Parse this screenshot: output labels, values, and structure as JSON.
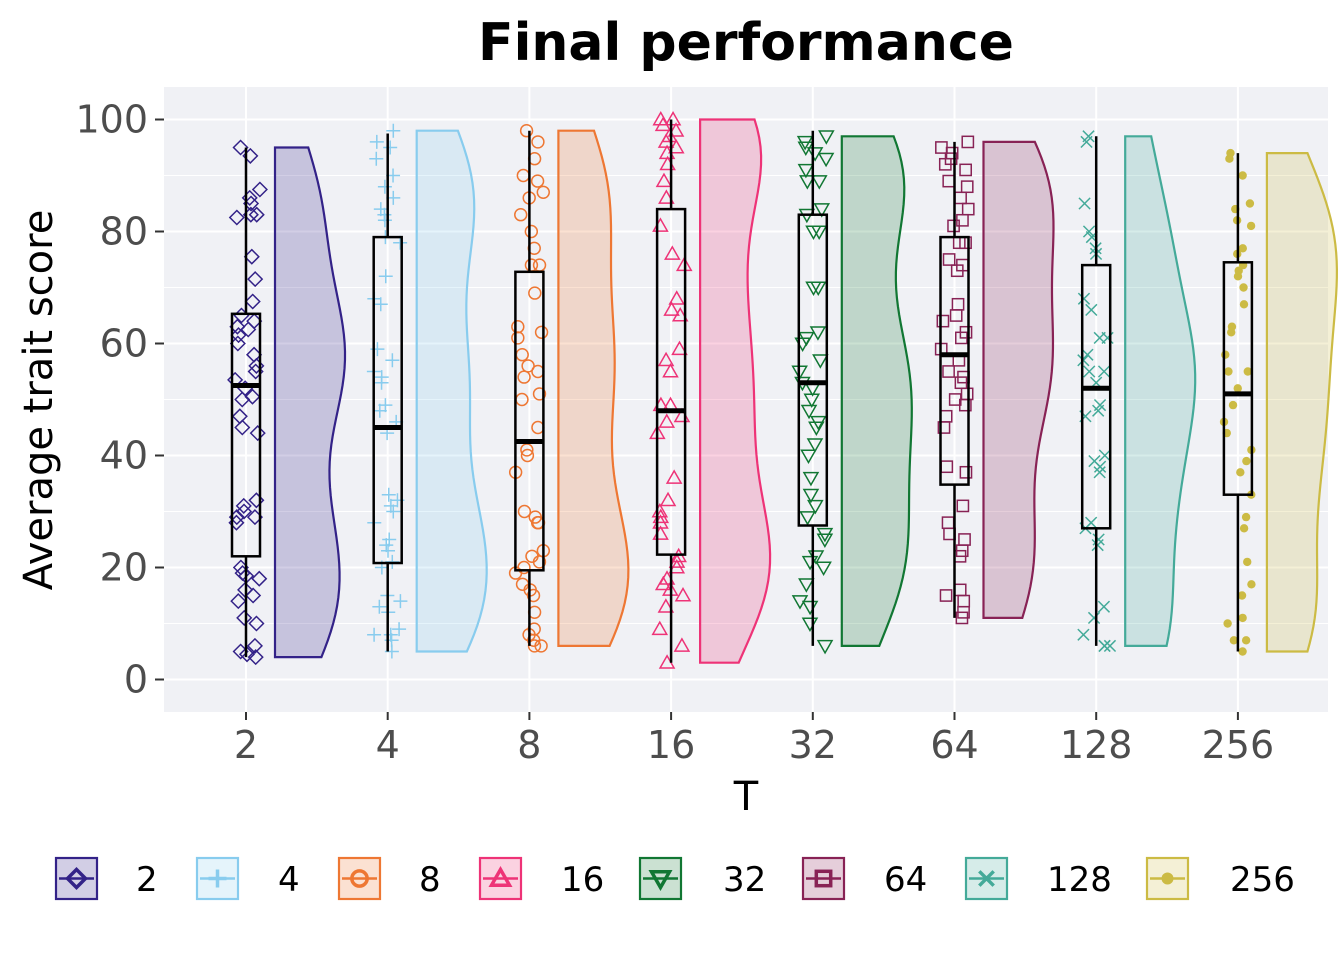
{
  "chart_data": {
    "type": "raincloud",
    "title": "Final performance",
    "xlabel": "T",
    "ylabel": "Average trait score",
    "ylim": [
      -5.5,
      106
    ],
    "y_ticks": [
      0,
      20,
      40,
      60,
      80,
      100
    ],
    "categories": [
      "2",
      "4",
      "8",
      "16",
      "32",
      "64",
      "128",
      "256"
    ],
    "grid": true,
    "legend_position": "bottom",
    "series": [
      {
        "name": "2",
        "color": "#332288",
        "shape": "diamond",
        "box": {
          "min": 4,
          "q1": 22,
          "median": 52.5,
          "q3": 65.3,
          "max": 95
        },
        "points": [
          93.5,
          95,
          86,
          87.5,
          85,
          83,
          82.5,
          83,
          75.5,
          71.5,
          67.5,
          65,
          64,
          63,
          62.5,
          61.5,
          60,
          58,
          56,
          55,
          53.5,
          52,
          50.5,
          50,
          47,
          45,
          44,
          32,
          31,
          30,
          29,
          29,
          28,
          20,
          19,
          18.5,
          18,
          16,
          15,
          14,
          11,
          10,
          6,
          5,
          4.5,
          4
        ]
      },
      {
        "name": "4",
        "color": "#88CCEE",
        "shape": "plus",
        "box": {
          "min": 5,
          "q1": 20.8,
          "median": 45,
          "q3": 79,
          "max": 97.5
        },
        "points": [
          98,
          96,
          95,
          93,
          90,
          88,
          86,
          84,
          83,
          82,
          79,
          78,
          72,
          68,
          67,
          59,
          57,
          55,
          54,
          53,
          49,
          48,
          46,
          44,
          33,
          32,
          31,
          30,
          28,
          25,
          24,
          23,
          21,
          20,
          15,
          14,
          13,
          12,
          9,
          8,
          8,
          7,
          5
        ]
      },
      {
        "name": "8",
        "color": "#EE7733",
        "shape": "circle",
        "box": {
          "min": 6,
          "q1": 19.5,
          "median": 42.5,
          "q3": 72.8,
          "max": 98
        },
        "points": [
          98,
          96,
          93,
          90,
          89,
          87,
          86,
          83,
          80,
          77,
          74,
          74,
          69,
          63,
          62,
          61,
          58,
          56,
          55,
          54,
          51,
          50,
          45,
          41,
          40,
          37,
          30,
          29,
          28,
          28,
          23,
          22,
          21,
          20,
          19,
          17,
          16,
          15,
          12,
          9,
          8,
          7,
          6,
          6
        ]
      },
      {
        "name": "16",
        "color": "#EE3377",
        "shape": "triangle",
        "box": {
          "min": 3,
          "q1": 22.3,
          "median": 48,
          "q3": 84,
          "max": 100
        },
        "points": [
          100,
          100,
          99,
          98,
          97,
          96,
          95,
          94,
          92,
          89,
          86,
          81,
          76,
          74,
          68,
          66,
          65,
          59,
          57,
          55,
          49,
          49,
          47,
          46,
          44,
          36,
          32,
          30,
          29,
          28,
          26,
          22,
          21,
          20,
          18,
          17,
          16,
          15,
          13,
          9,
          6,
          3
        ]
      },
      {
        "name": "32",
        "color": "#117733",
        "shape": "triangle-down",
        "box": {
          "min": 6,
          "q1": 27.5,
          "median": 53,
          "q3": 83,
          "max": 98
        },
        "points": [
          97,
          96,
          95,
          94,
          93,
          91,
          89,
          89,
          84,
          83,
          80,
          80,
          70,
          70,
          62,
          61,
          60,
          57,
          55,
          53,
          52,
          50,
          48,
          46,
          45,
          42,
          40,
          36,
          33,
          31,
          29,
          26,
          25,
          22,
          21,
          20,
          17,
          14,
          13,
          10,
          6
        ]
      },
      {
        "name": "64",
        "color": "#882255",
        "shape": "square",
        "box": {
          "min": 11,
          "q1": 34.8,
          "median": 58,
          "q3": 79,
          "max": 96
        },
        "points": [
          96,
          95,
          94,
          93,
          92,
          91,
          89,
          88,
          86,
          84,
          82,
          81,
          78,
          78,
          75,
          74,
          73,
          67,
          65,
          64,
          62,
          61,
          59,
          57,
          55,
          54,
          53,
          51,
          50,
          49,
          47,
          45,
          38,
          37,
          31,
          28,
          26,
          25,
          23,
          22,
          16,
          15,
          14,
          12,
          11
        ]
      },
      {
        "name": "128",
        "color": "#44AA99",
        "shape": "x",
        "box": {
          "min": 6,
          "q1": 27,
          "median": 52,
          "q3": 74,
          "max": 97
        },
        "points": [
          97,
          96,
          85,
          80,
          79,
          77,
          76,
          68,
          66,
          61,
          61,
          58,
          57,
          55,
          55,
          53,
          49,
          48,
          47,
          40,
          39,
          38,
          37,
          28,
          27,
          25,
          24,
          13,
          11,
          8,
          6,
          6,
          6
        ]
      },
      {
        "name": "256",
        "color": "#CCBB44",
        "shape": "dot",
        "box": {
          "min": 5,
          "q1": 33,
          "median": 51,
          "q3": 74.5,
          "max": 94
        },
        "points": [
          94,
          93,
          90,
          85,
          84,
          82,
          81,
          77,
          76,
          74,
          73,
          72,
          70,
          67,
          63,
          62,
          58,
          55,
          55,
          52,
          49,
          46,
          44,
          41,
          39,
          37,
          33,
          29,
          27,
          21,
          17,
          15,
          11,
          10,
          7,
          7,
          5
        ]
      }
    ]
  }
}
